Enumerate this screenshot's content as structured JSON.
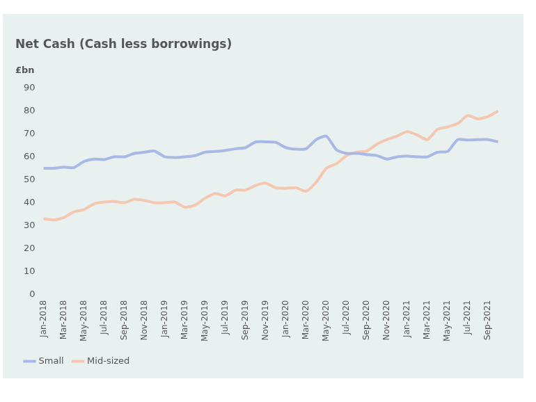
{
  "chart_data": {
    "type": "line",
    "title": "Net Cash (Cash less borrowings)",
    "y_label": "£bn",
    "categories": [
      "Jan-2018",
      null,
      "Mar-2018",
      null,
      "May-2018",
      null,
      "Jul-2018",
      null,
      "Sep-2018",
      null,
      "Nov-2018",
      null,
      "Jan-2019",
      null,
      "Mar-2019",
      null,
      "May-2019",
      null,
      "Jul-2019",
      null,
      "Sep-2019",
      null,
      "Nov-2019",
      null,
      "Jan-2020",
      null,
      "Mar-2020",
      null,
      "May-2020",
      null,
      "Jul-2020",
      null,
      "Sep-2020",
      null,
      "Nov-2020",
      null,
      "Jan-2021",
      null,
      "Mar-2021",
      null,
      "May-2021",
      null,
      "Jul-2021",
      null,
      "Sep-2021",
      null
    ],
    "series": [
      {
        "name": "Small",
        "color": "#a9b9e6",
        "values": [
          55,
          55,
          55.5,
          55.3,
          58,
          59,
          58.8,
          60,
          60,
          61.5,
          62,
          62.5,
          60,
          59.7,
          60,
          60.5,
          62,
          62.3,
          62.8,
          63.5,
          64,
          66.5,
          66.5,
          66.3,
          64,
          63.3,
          63.5,
          67.5,
          69,
          63,
          61.5,
          61.5,
          61,
          60.5,
          59,
          60,
          60.3,
          60,
          60,
          62,
          62.3,
          67.5,
          67.3,
          67.5,
          67.5,
          66.5
        ]
      },
      {
        "name": "Mid-sized",
        "color": "#f5c6b0",
        "values": [
          33,
          32.5,
          33.5,
          36,
          37,
          39.5,
          40.3,
          40.5,
          40,
          41.5,
          41,
          40,
          40,
          40.3,
          38,
          39,
          42,
          44,
          43,
          45.5,
          45.5,
          47.5,
          48.5,
          46.5,
          46.3,
          46.5,
          45,
          49,
          55,
          57,
          60.5,
          62,
          62.5,
          65.5,
          67.5,
          69,
          71,
          69.5,
          67.5,
          72,
          73,
          74.5,
          78,
          76.5,
          77.5,
          80
        ]
      }
    ],
    "ylim": [
      0,
      90
    ],
    "yticks": [
      0,
      10,
      20,
      30,
      40,
      50,
      60,
      70,
      80,
      90
    ],
    "grid": false,
    "legend": "bottom-left"
  }
}
